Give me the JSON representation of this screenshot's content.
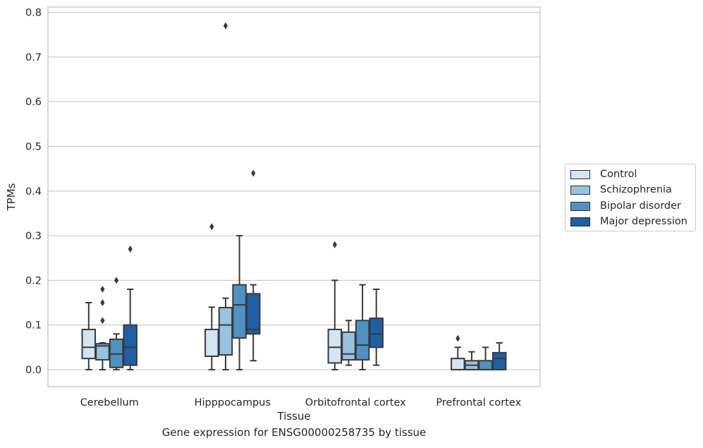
{
  "chart_data": {
    "type": "box",
    "xlabel": "Tissue",
    "ylabel": "TPMs",
    "ylim": [
      -0.038,
      0.812
    ],
    "yticks": [
      0.0,
      0.1,
      0.2,
      0.3,
      0.4,
      0.5,
      0.6,
      0.7,
      0.8
    ],
    "ytick_labels": [
      "0.0",
      "0.1",
      "0.2",
      "0.3",
      "0.4",
      "0.5",
      "0.6",
      "0.7",
      "0.8"
    ],
    "grid": "horizontal",
    "legend_position": "right",
    "categories": [
      "Cerebellum",
      "Hipppocampus",
      "Orbitofrontal cortex",
      "Prefrontal cortex"
    ],
    "series": [
      {
        "name": "Control",
        "color": "#d3e4f3",
        "boxes": [
          {
            "whislo": 0.0,
            "q1": 0.025,
            "med": 0.05,
            "q3": 0.09,
            "whishi": 0.15,
            "fliers": []
          },
          {
            "whislo": 0.0,
            "q1": 0.03,
            "med": 0.03,
            "q3": 0.09,
            "whishi": 0.14,
            "fliers": [
              0.32
            ]
          },
          {
            "whislo": 0.0,
            "q1": 0.015,
            "med": 0.05,
            "q3": 0.09,
            "whishi": 0.2,
            "fliers": [
              0.28
            ]
          },
          {
            "whislo": 0.0,
            "q1": 0.0,
            "med": 0.0,
            "q3": 0.025,
            "whishi": 0.05,
            "fliers": [
              0.07
            ]
          }
        ]
      },
      {
        "name": "Schizophrenia",
        "color": "#97c3df",
        "boxes": [
          {
            "whislo": 0.0,
            "q1": 0.022,
            "med": 0.053,
            "q3": 0.058,
            "whishi": 0.06,
            "fliers": [
              0.11,
              0.15,
              0.18
            ]
          },
          {
            "whislo": 0.0,
            "q1": 0.033,
            "med": 0.1,
            "q3": 0.139,
            "whishi": 0.16,
            "fliers": [
              0.77
            ]
          },
          {
            "whislo": 0.01,
            "q1": 0.022,
            "med": 0.035,
            "q3": 0.084,
            "whishi": 0.11,
            "fliers": []
          },
          {
            "whislo": 0.0,
            "q1": 0.0,
            "med": 0.01,
            "q3": 0.02,
            "whishi": 0.04,
            "fliers": []
          }
        ]
      },
      {
        "name": "Bipolar disorder",
        "color": "#4e92c3",
        "boxes": [
          {
            "whislo": 0.0,
            "q1": 0.005,
            "med": 0.035,
            "q3": 0.068,
            "whishi": 0.08,
            "fliers": [
              0.2
            ]
          },
          {
            "whislo": 0.0,
            "q1": 0.071,
            "med": 0.145,
            "q3": 0.19,
            "whishi": 0.3,
            "fliers": []
          },
          {
            "whislo": 0.0,
            "q1": 0.022,
            "med": 0.055,
            "q3": 0.11,
            "whishi": 0.19,
            "fliers": []
          },
          {
            "whislo": 0.0,
            "q1": 0.0,
            "med": 0.0,
            "q3": 0.02,
            "whishi": 0.05,
            "fliers": []
          }
        ]
      },
      {
        "name": "Major depression",
        "color": "#1f5fa6",
        "boxes": [
          {
            "whislo": 0.0,
            "q1": 0.01,
            "med": 0.05,
            "q3": 0.1,
            "whishi": 0.18,
            "fliers": [
              0.27
            ]
          },
          {
            "whislo": 0.02,
            "q1": 0.08,
            "med": 0.09,
            "q3": 0.17,
            "whishi": 0.19,
            "fliers": [
              0.44
            ]
          },
          {
            "whislo": 0.01,
            "q1": 0.05,
            "med": 0.08,
            "q3": 0.115,
            "whishi": 0.18,
            "fliers": []
          },
          {
            "whislo": 0.0,
            "q1": 0.0,
            "med": 0.025,
            "q3": 0.038,
            "whishi": 0.06,
            "fliers": []
          }
        ]
      }
    ]
  },
  "caption": "Gene expression for ENSG00000258735 by tissue"
}
